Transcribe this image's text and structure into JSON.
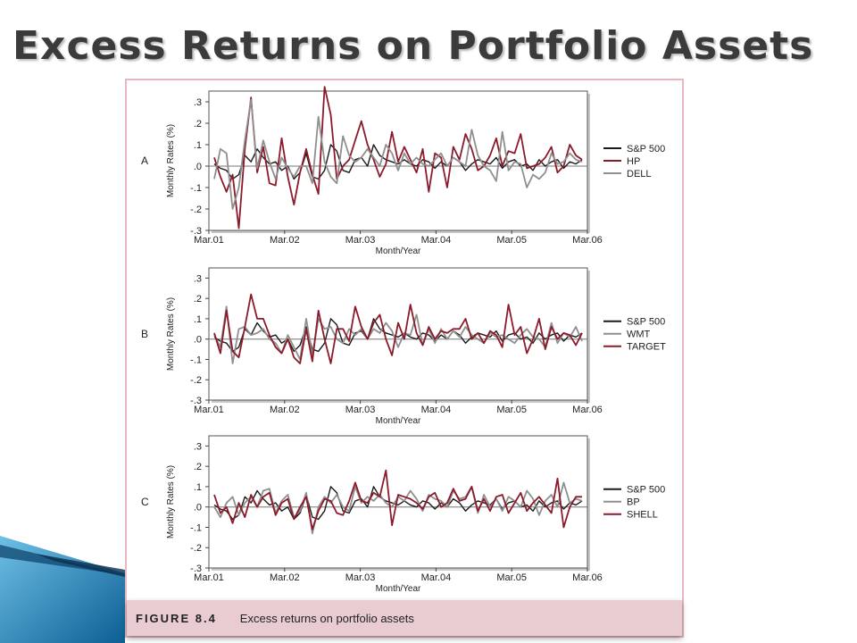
{
  "slide": {
    "title": "Excess Returns on Portfolio Assets"
  },
  "figure": {
    "caption_label": "FIGURE 8.4",
    "caption_text": "Excess returns on portfolio assets"
  },
  "colors": {
    "sp500": "#1a1a1a",
    "maroon": "#8b1a2b",
    "gray": "#8f8f8f",
    "frame": "#e6b9c1",
    "caption_bg": "#e8ccd1",
    "deco_blue": "#1f7fb8"
  },
  "chart_data": [
    {
      "type": "line",
      "panel": "A",
      "xlabel": "Month/Year",
      "ylabel": "Monthly Rates (%)",
      "ylim": [
        -0.3,
        0.35
      ],
      "yticks": [
        ".3",
        ".2",
        ".1",
        ".0",
        "-.1",
        "-.2",
        "-.3"
      ],
      "xticks": [
        "Mar.01",
        "Mar.02",
        "Mar.03",
        "Mar.04",
        "Mar.05",
        "Mar.06"
      ],
      "x_range": [
        "Mar.01",
        "Mar.06"
      ],
      "grid": false,
      "legend_position": "right",
      "series": [
        {
          "name": "S&P 500",
          "color": "#1a1a1a",
          "values": [
            0.01,
            -0.01,
            -0.02,
            -0.06,
            -0.04,
            0.05,
            0.02,
            0.08,
            0.04,
            0.01,
            0.02,
            -0.02,
            0.0,
            -0.06,
            -0.03,
            0.06,
            -0.05,
            -0.06,
            -0.02,
            0.1,
            0.07,
            -0.02,
            -0.03,
            0.03,
            0.04,
            0.0,
            0.1,
            0.05,
            0.03,
            0.02,
            0.01,
            0.03,
            0.01,
            0.0,
            0.03,
            0.02,
            -0.01,
            0.02,
            0.0,
            0.04,
            0.02,
            -0.02,
            0.01,
            0.03,
            0.02,
            0.01,
            0.04,
            -0.01,
            0.02,
            0.03,
            0.0,
            0.01,
            -0.02,
            0.03,
            0.0,
            0.02,
            0.03,
            -0.01,
            0.02,
            0.01,
            0.03
          ]
        },
        {
          "name": "HP",
          "color": "#8b1a2b",
          "values": [
            0.04,
            -0.05,
            -0.12,
            -0.04,
            -0.29,
            0.08,
            0.32,
            -0.03,
            0.09,
            -0.08,
            -0.09,
            0.13,
            -0.05,
            -0.18,
            -0.03,
            0.08,
            -0.04,
            -0.13,
            0.37,
            0.24,
            -0.06,
            0.0,
            0.03,
            0.12,
            0.21,
            0.1,
            0.03,
            -0.05,
            0.01,
            0.16,
            0.02,
            0.09,
            0.03,
            -0.03,
            0.08,
            -0.12,
            0.06,
            0.04,
            -0.1,
            0.09,
            0.03,
            0.15,
            0.08,
            -0.02,
            0.0,
            0.05,
            0.13,
            0.0,
            0.07,
            0.06,
            0.15,
            -0.01,
            0.0,
            0.01,
            0.04,
            0.09,
            -0.03,
            0.0,
            0.1,
            0.05,
            0.03
          ]
        },
        {
          "name": "DELL",
          "color": "#8f8f8f",
          "values": [
            -0.06,
            0.08,
            0.06,
            -0.2,
            -0.1,
            0.12,
            0.31,
            -0.01,
            0.12,
            0.02,
            -0.06,
            0.04,
            -0.01,
            -0.05,
            0.0,
            0.0,
            -0.08,
            0.23,
            0.02,
            -0.05,
            -0.08,
            0.14,
            0.05,
            0.02,
            0.04,
            0.08,
            0.04,
            0.0,
            0.1,
            0.06,
            -0.02,
            0.06,
            0.01,
            0.04,
            0.01,
            0.0,
            0.03,
            0.06,
            0.0,
            0.04,
            0.02,
            0.0,
            0.17,
            0.05,
            0.0,
            -0.02,
            -0.07,
            0.16,
            -0.02,
            0.02,
            0.01,
            -0.1,
            -0.04,
            -0.06,
            -0.03,
            0.06,
            0.01,
            0.02,
            0.06,
            0.03,
            0.02
          ]
        }
      ]
    },
    {
      "type": "line",
      "panel": "B",
      "xlabel": "Month/Year",
      "ylabel": "Monthly Rates (%)",
      "ylim": [
        -0.3,
        0.35
      ],
      "yticks": [
        ".3",
        ".2",
        ".1",
        ".0",
        "-.1",
        "-.2",
        "-.3"
      ],
      "xticks": [
        "Mar.01",
        "Mar.02",
        "Mar.03",
        "Mar.04",
        "Mar.05",
        "Mar.06"
      ],
      "x_range": [
        "Mar.01",
        "Mar.06"
      ],
      "grid": false,
      "legend_position": "right",
      "series": [
        {
          "name": "S&P 500",
          "color": "#1a1a1a",
          "values": [
            0.01,
            -0.01,
            -0.02,
            -0.06,
            -0.04,
            0.05,
            0.02,
            0.08,
            0.04,
            0.01,
            0.02,
            -0.02,
            0.0,
            -0.06,
            -0.03,
            0.06,
            -0.05,
            -0.06,
            -0.02,
            0.1,
            0.07,
            -0.02,
            -0.03,
            0.03,
            0.04,
            0.0,
            0.1,
            0.05,
            0.03,
            0.02,
            0.01,
            0.03,
            0.01,
            0.0,
            0.03,
            0.02,
            -0.01,
            0.02,
            0.0,
            0.04,
            0.02,
            -0.02,
            0.01,
            0.03,
            0.02,
            0.01,
            0.04,
            -0.01,
            0.02,
            0.03,
            0.0,
            0.01,
            -0.02,
            0.03,
            0.0,
            0.02,
            0.03,
            -0.01,
            0.02,
            0.01,
            0.03
          ]
        },
        {
          "name": "WMT",
          "color": "#8f8f8f",
          "values": [
            0.02,
            -0.04,
            0.16,
            -0.12,
            0.05,
            0.06,
            0.02,
            0.03,
            0.05,
            0.0,
            -0.02,
            -0.07,
            0.02,
            -0.04,
            -0.1,
            0.1,
            -0.08,
            0.1,
            0.05,
            0.06,
            0.0,
            -0.02,
            0.05,
            0.02,
            0.05,
            0.0,
            0.05,
            0.03,
            0.08,
            0.04,
            -0.04,
            0.03,
            0.02,
            0.12,
            -0.03,
            0.05,
            -0.02,
            0.05,
            0.0,
            0.04,
            0.01,
            0.06,
            0.02,
            0.0,
            -0.02,
            0.03,
            0.01,
            0.02,
            0.0,
            -0.02,
            0.02,
            0.05,
            0.01,
            0.0,
            -0.04,
            0.08,
            -0.02,
            0.03,
            0.01,
            0.06,
            -0.01
          ]
        },
        {
          "name": "TARGET",
          "color": "#8b1a2b",
          "values": [
            0.03,
            -0.07,
            0.14,
            -0.06,
            -0.09,
            0.06,
            0.22,
            0.1,
            0.1,
            0.02,
            -0.04,
            -0.07,
            0.0,
            -0.09,
            -0.12,
            0.05,
            -0.11,
            0.14,
            0.0,
            -0.12,
            0.05,
            0.05,
            -0.01,
            0.16,
            0.06,
            0.0,
            0.08,
            0.12,
            0.0,
            -0.08,
            0.08,
            0.0,
            0.17,
            0.03,
            -0.03,
            0.06,
            0.0,
            0.04,
            0.03,
            0.05,
            0.05,
            0.1,
            0.0,
            0.03,
            -0.02,
            0.04,
            0.02,
            -0.04,
            0.17,
            0.02,
            0.06,
            -0.07,
            0.0,
            0.1,
            -0.05,
            0.06,
            0.0,
            0.03,
            0.02,
            -0.03,
            0.03
          ]
        }
      ]
    },
    {
      "type": "line",
      "panel": "C",
      "xlabel": "Month/Year",
      "ylabel": "Monthly Rates (%)",
      "ylim": [
        -0.3,
        0.35
      ],
      "yticks": [
        ".3",
        ".2",
        ".1",
        ".0",
        "-.1",
        "-.2",
        "-.3"
      ],
      "xticks": [
        "Mar.01",
        "Mar.02",
        "Mar.03",
        "Mar.04",
        "Mar.05",
        "Mar.06"
      ],
      "x_range": [
        "Mar.01",
        "Mar.06"
      ],
      "grid": false,
      "legend_position": "right",
      "series": [
        {
          "name": "S&P 500",
          "color": "#1a1a1a",
          "values": [
            0.01,
            -0.01,
            -0.02,
            -0.06,
            -0.04,
            0.05,
            0.02,
            0.08,
            0.04,
            0.01,
            0.02,
            -0.02,
            0.0,
            -0.06,
            -0.03,
            0.06,
            -0.05,
            -0.06,
            -0.02,
            0.1,
            0.07,
            -0.02,
            -0.03,
            0.03,
            0.04,
            0.0,
            0.1,
            0.05,
            0.03,
            0.02,
            0.01,
            0.03,
            0.01,
            0.0,
            0.03,
            0.02,
            -0.01,
            0.02,
            0.0,
            0.04,
            0.02,
            -0.02,
            0.01,
            0.03,
            0.02,
            0.01,
            0.04,
            -0.01,
            0.02,
            0.03,
            0.0,
            0.01,
            -0.02,
            0.03,
            0.0,
            0.02,
            0.03,
            -0.01,
            0.02,
            0.01,
            0.03
          ]
        },
        {
          "name": "BP",
          "color": "#8f8f8f",
          "values": [
            0.0,
            -0.05,
            0.02,
            0.05,
            -0.04,
            0.02,
            0.05,
            0.0,
            0.08,
            0.09,
            -0.03,
            0.03,
            0.06,
            -0.05,
            -0.02,
            0.07,
            -0.13,
            0.0,
            0.05,
            0.02,
            0.06,
            0.0,
            -0.02,
            0.1,
            0.02,
            0.05,
            0.03,
            0.06,
            0.02,
            0.0,
            0.05,
            0.03,
            0.08,
            0.04,
            -0.02,
            0.06,
            0.04,
            0.03,
            0.0,
            0.08,
            0.04,
            0.05,
            0.1,
            -0.03,
            0.06,
            0.0,
            0.04,
            -0.02,
            0.05,
            0.03,
            0.0,
            0.08,
            0.04,
            -0.04,
            0.03,
            0.06,
            0.0,
            0.12,
            0.02,
            0.04,
            0.03
          ]
        },
        {
          "name": "SHELL",
          "color": "#8b1a2b",
          "values": [
            0.06,
            -0.03,
            0.0,
            -0.08,
            0.02,
            -0.05,
            0.06,
            0.0,
            0.05,
            0.07,
            -0.04,
            0.02,
            0.04,
            -0.06,
            0.0,
            0.05,
            -0.11,
            -0.02,
            0.04,
            0.03,
            -0.03,
            -0.04,
            0.03,
            0.12,
            0.03,
            0.02,
            0.07,
            0.05,
            0.18,
            -0.09,
            0.06,
            0.05,
            0.04,
            0.02,
            -0.01,
            0.05,
            0.07,
            0.0,
            0.02,
            0.09,
            0.03,
            0.04,
            0.1,
            -0.02,
            0.04,
            -0.02,
            0.05,
            0.06,
            -0.03,
            0.02,
            0.07,
            -0.02,
            0.02,
            0.05,
            0.01,
            -0.03,
            0.14,
            -0.1,
            0.0,
            0.05,
            0.05
          ]
        }
      ]
    }
  ]
}
